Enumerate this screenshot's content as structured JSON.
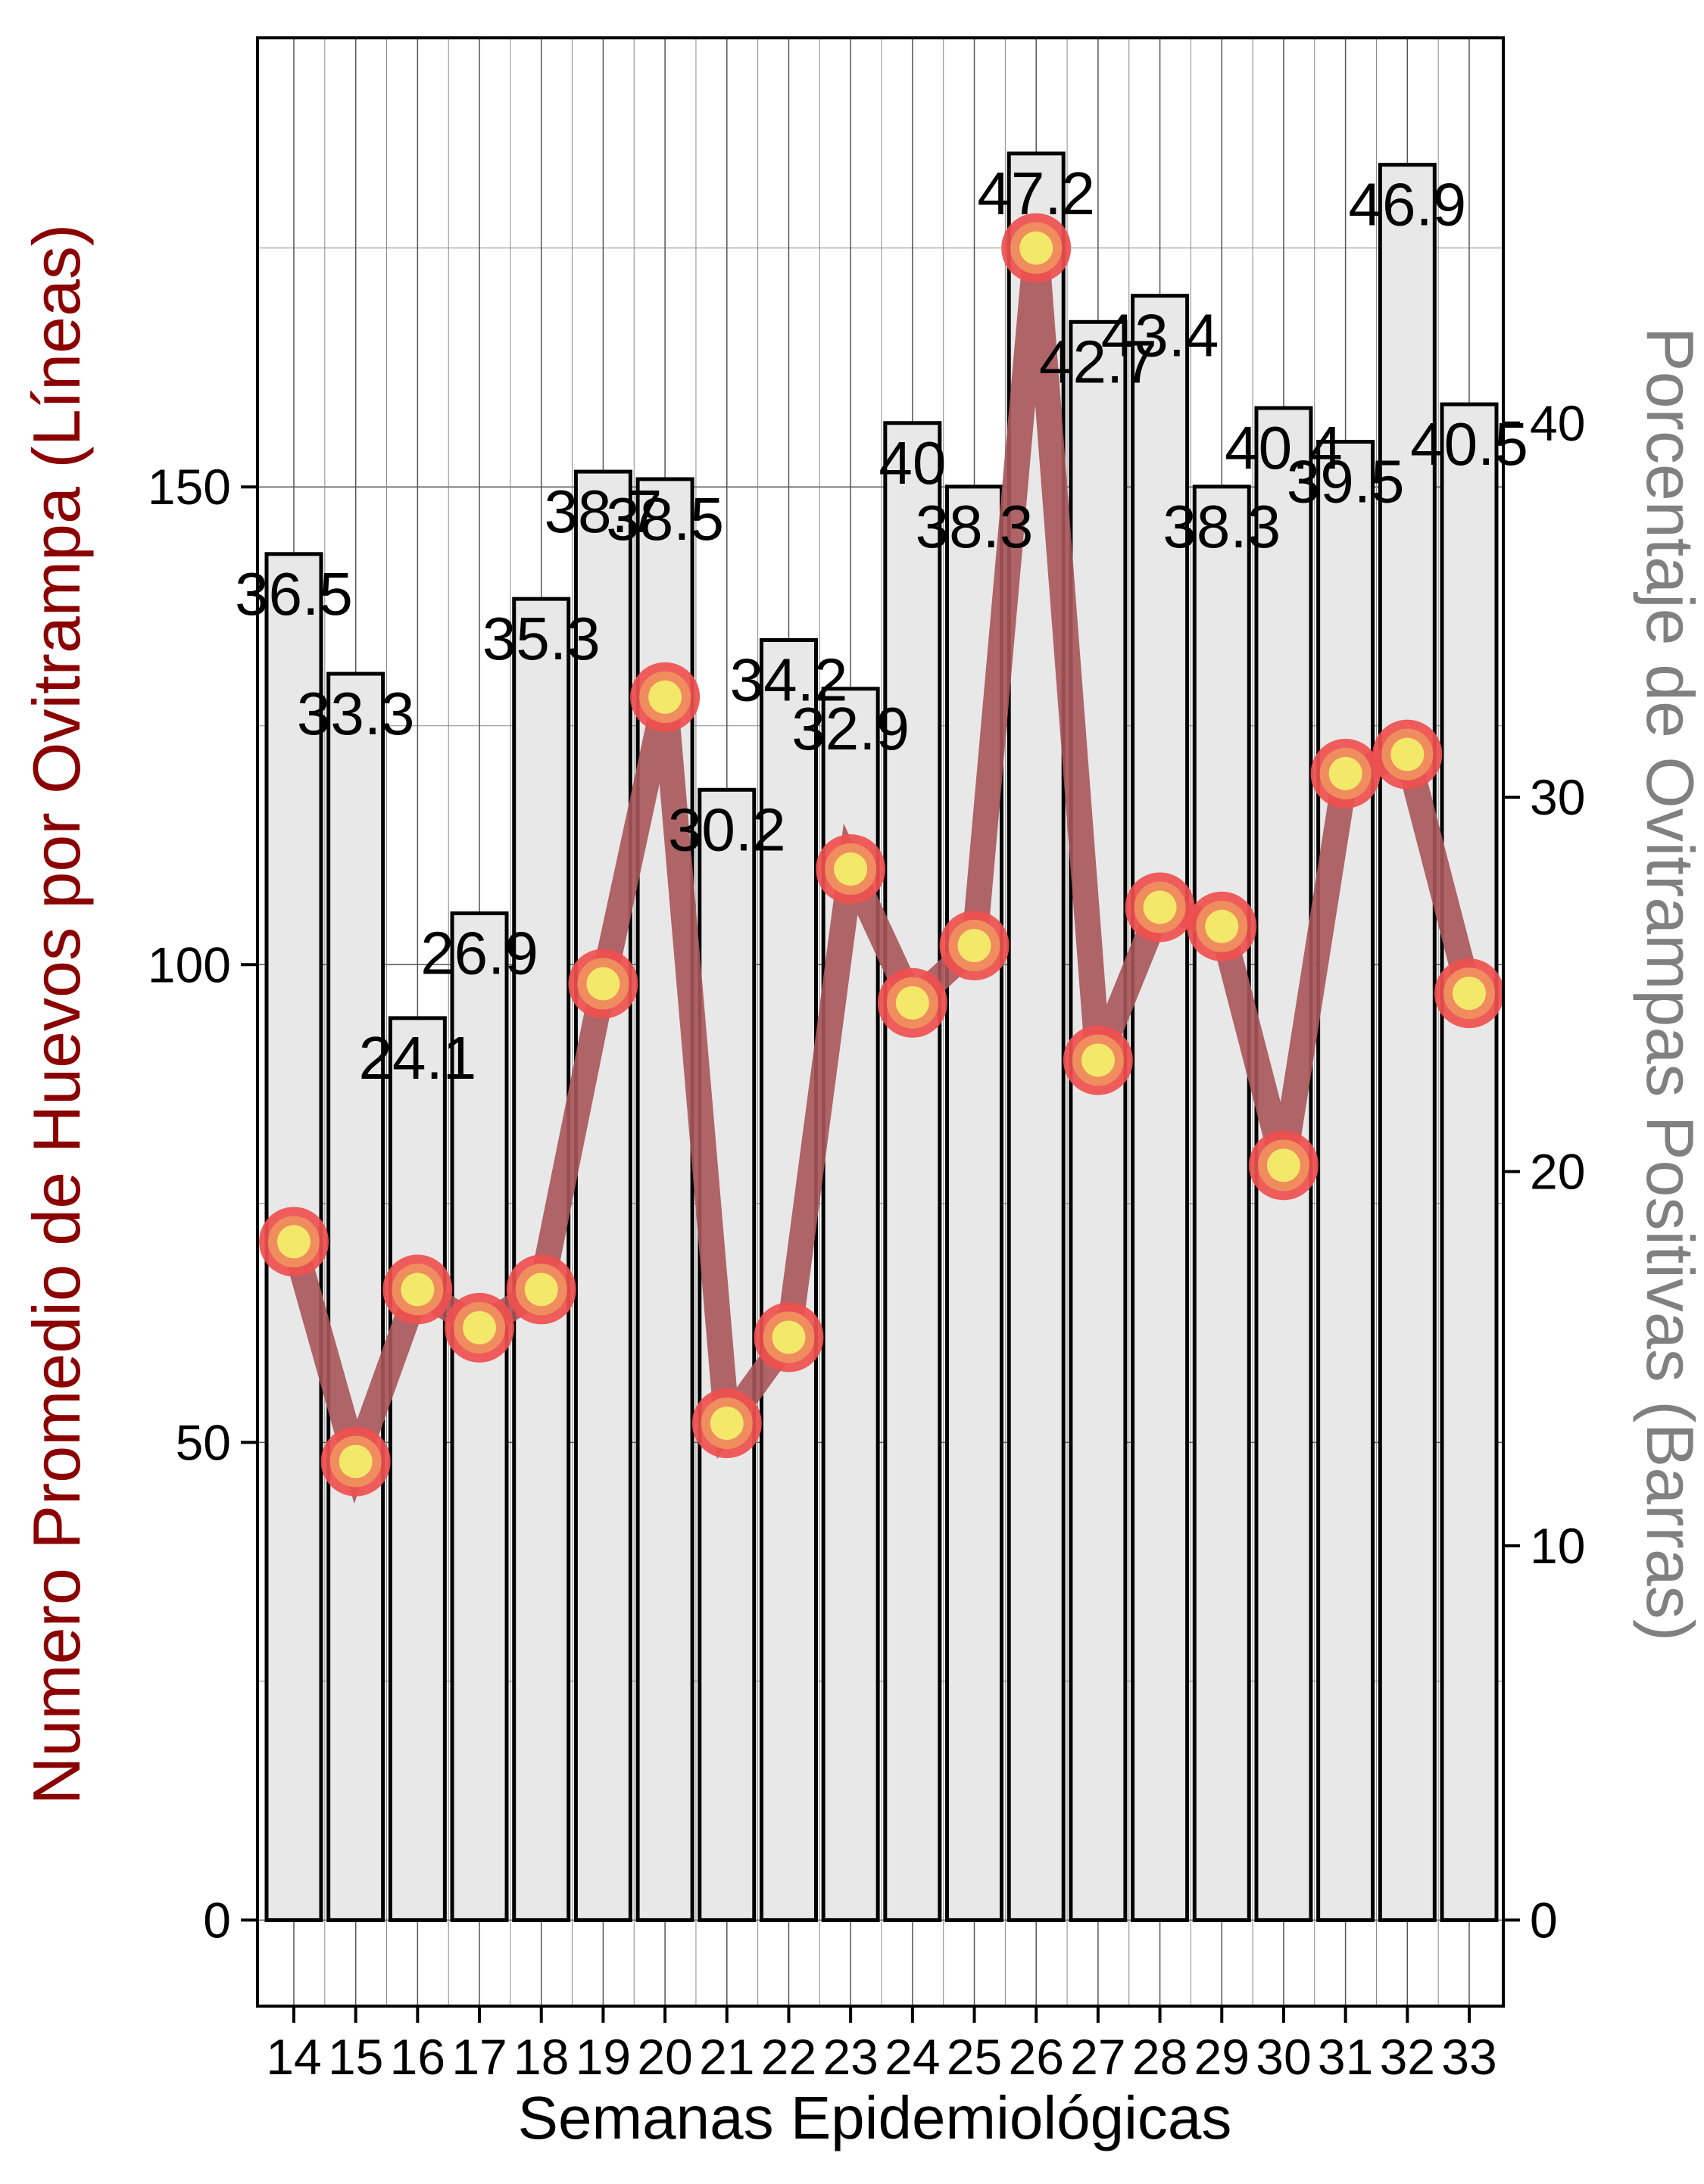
{
  "chart_data": {
    "type": "bar+line",
    "title": "",
    "xlabel": "Semanas Epidemiológicas",
    "ylabel_left": "Numero Promedio de Huevos por Ovitrampa (Líneas)",
    "ylabel_right": "Porcentaje de Ovitrampas Positivas (Barras)",
    "categories": [
      "14",
      "15",
      "16",
      "17",
      "18",
      "19",
      "20",
      "21",
      "22",
      "23",
      "24",
      "25",
      "26",
      "27",
      "28",
      "29",
      "30",
      "31",
      "32",
      "33"
    ],
    "bar_series": {
      "axis": "right",
      "values": [
        36.5,
        33.3,
        24.1,
        26.9,
        35.3,
        38.7,
        38.5,
        30.2,
        34.2,
        32.9,
        40,
        38.3,
        47.2,
        42.7,
        43.4,
        38.3,
        40.4,
        39.5,
        46.9,
        40.5
      ],
      "labels": [
        "36.5",
        "33.3",
        "24.1",
        "26.9",
        "35.3",
        "38.7",
        "38.5",
        "30.2",
        "34.2",
        "32.9",
        "40",
        "38.3",
        "47.2",
        "42.7",
        "43.4",
        "38.3",
        "40.4",
        "39.5",
        "46.9",
        "40.5"
      ]
    },
    "line_series": {
      "axis": "left",
      "values": [
        71,
        48,
        66,
        62,
        66,
        98,
        128,
        52,
        61,
        110,
        96,
        102,
        175,
        90,
        106,
        104,
        79,
        120,
        122,
        97
      ]
    },
    "y_left": {
      "min": -9,
      "max": 197,
      "ticks": [
        0,
        50,
        100,
        150
      ],
      "minor_grid": [
        25,
        75,
        125,
        175
      ]
    },
    "y_right": {
      "ticks": [
        0,
        10,
        20,
        30,
        40
      ],
      "labels": [
        "0",
        "10",
        "20",
        "30",
        "40"
      ]
    },
    "grid": true,
    "colors": {
      "bar_fill": "#e8e8e8",
      "bar_stroke": "#000000",
      "line": "#a8555a",
      "marker_outer": "#ef4f4f",
      "marker_mid": "#f08d5f",
      "marker_inner": "#f4e86a",
      "left_axis_title": "#8B0000",
      "right_axis_title": "#808080"
    }
  }
}
